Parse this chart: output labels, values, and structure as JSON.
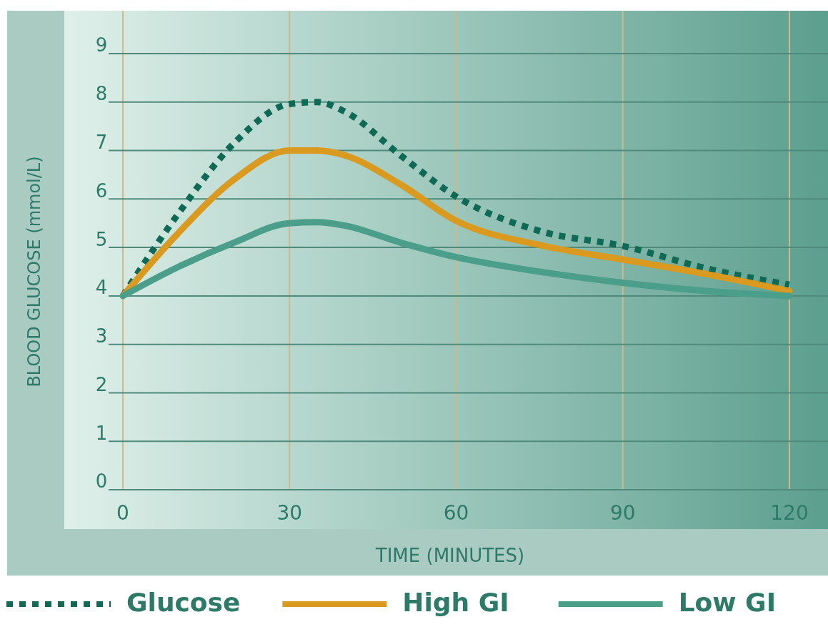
{
  "chart_data": {
    "type": "line",
    "xlabel": "TIME (MINUTES)",
    "ylabel": "BLOOD GLUCOSE (mmol/L)",
    "xlim": [
      0,
      120
    ],
    "xticks": [
      0,
      30,
      60,
      90,
      120
    ],
    "ylim": [
      0,
      9
    ],
    "yticks": [
      0,
      1,
      2,
      3,
      4,
      5,
      6,
      7,
      8,
      9
    ],
    "grid": true,
    "legend": "bottom",
    "x": [
      0,
      10,
      20,
      30,
      35,
      40,
      50,
      60,
      75,
      90,
      105,
      120
    ],
    "series": [
      {
        "name": "Glucose",
        "color": "#0e6a55",
        "line_style": "dotted",
        "values": [
          4.0,
          5.7,
          7.15,
          7.96,
          8.0,
          7.8,
          6.9,
          6.05,
          5.34,
          5.03,
          4.57,
          4.23
        ]
      },
      {
        "name": "High GI",
        "color": "#d99a1f",
        "line_style": "solid",
        "values": [
          4.0,
          5.3,
          6.4,
          7.0,
          7.0,
          6.9,
          6.3,
          5.55,
          5.05,
          4.75,
          4.45,
          4.1
        ]
      },
      {
        "name": "Low GI",
        "color": "#4a9e8a",
        "line_style": "solid",
        "values": [
          4.0,
          4.6,
          5.1,
          5.5,
          5.52,
          5.45,
          5.1,
          4.8,
          4.5,
          4.27,
          4.1,
          4.0
        ]
      }
    ]
  }
}
